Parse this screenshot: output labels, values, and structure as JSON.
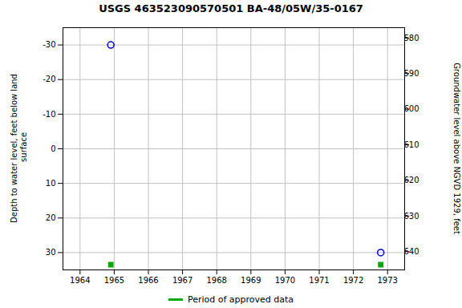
{
  "chart_data": {
    "type": "scatter",
    "title": "USGS 463523090570501 BA-48/05W/35-0167",
    "ylabel": "Depth to water level, feet below land\n surface",
    "y2label": "Groundwater level above NGVD 1929, feet",
    "x": [
      1964.9,
      1972.8
    ],
    "series": [
      {
        "color": "#0000cc",
        "marker": "circle",
        "values": [
          -30,
          30
        ]
      },
      {
        "name": "Period of approved data",
        "color": "#00aa00",
        "marker": "square",
        "values": [
          33.5,
          33.5
        ]
      }
    ],
    "xlim": [
      1963.5,
      1973.5
    ],
    "xticks": [
      1964,
      1965,
      1966,
      1967,
      1968,
      1969,
      1970,
      1971,
      1972,
      1973
    ],
    "ylim": [
      35,
      -35
    ],
    "yticks": [
      30,
      20,
      10,
      0,
      -10,
      -20,
      -30
    ],
    "y2lim": [
      645,
      577
    ],
    "y2ticks": [
      580,
      590,
      600,
      610,
      620,
      630,
      640
    ],
    "grid": true,
    "legend": "bottom"
  }
}
